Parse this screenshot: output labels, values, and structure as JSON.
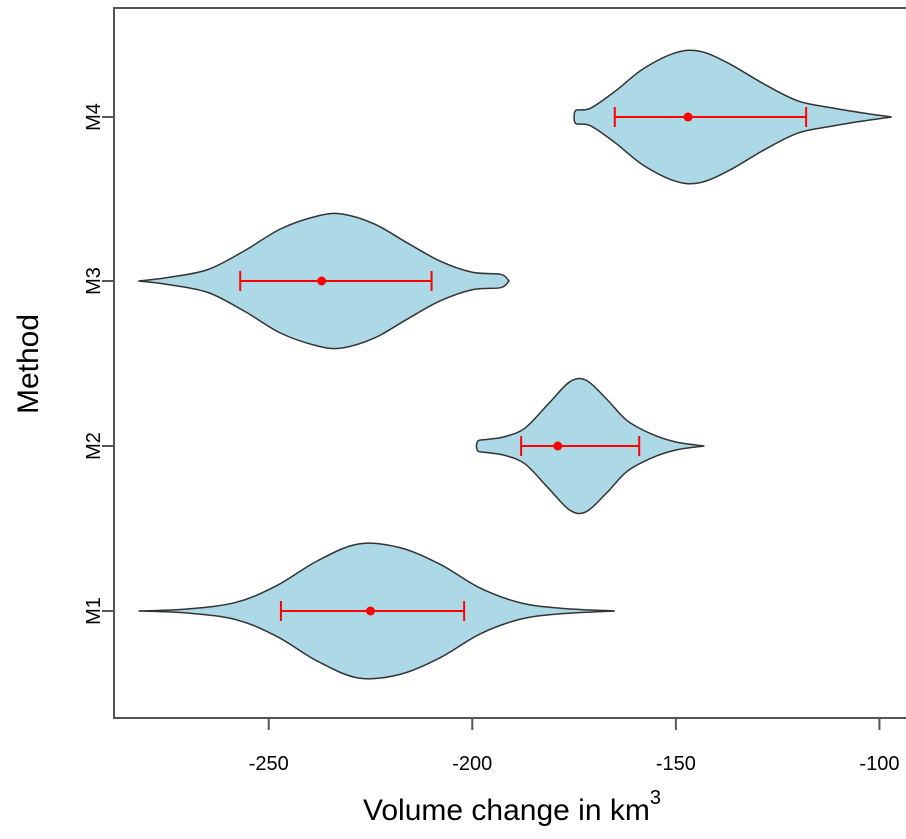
{
  "chart_data": {
    "type": "violin",
    "orientation": "horizontal",
    "xlabel": "Volume change in km",
    "xlabel_superscript": "3",
    "ylabel": "Method",
    "xlim": [
      -288,
      -92
    ],
    "x_ticks": [
      -250,
      -200,
      -150,
      -100
    ],
    "x_tick_labels": [
      "-250",
      "-200",
      "-150",
      "-100"
    ],
    "categories": [
      "M1",
      "M2",
      "M3",
      "M4"
    ],
    "series": [
      {
        "category": "M1",
        "min": -282,
        "max": -165,
        "mean": -225,
        "ci": [
          -247,
          -202
        ],
        "profile": [
          [
            -282,
            0
          ],
          [
            -270,
            0.03
          ],
          [
            -258,
            0.13
          ],
          [
            -248,
            0.38
          ],
          [
            -238,
            0.75
          ],
          [
            -228,
            1.0
          ],
          [
            -218,
            0.95
          ],
          [
            -208,
            0.7
          ],
          [
            -198,
            0.34
          ],
          [
            -188,
            0.12
          ],
          [
            -178,
            0.04
          ],
          [
            -165,
            0
          ]
        ]
      },
      {
        "category": "M2",
        "min": -199,
        "max": -143,
        "mean": -179,
        "ci": [
          -188,
          -159
        ],
        "profile": [
          [
            -199,
            0
          ],
          [
            -198.5,
            0.08
          ],
          [
            -196,
            0.1
          ],
          [
            -192,
            0.14
          ],
          [
            -187,
            0.27
          ],
          [
            -181,
            0.65
          ],
          [
            -176,
            0.96
          ],
          [
            -172,
            0.98
          ],
          [
            -167,
            0.7
          ],
          [
            -162,
            0.38
          ],
          [
            -156,
            0.18
          ],
          [
            -150,
            0.06
          ],
          [
            -143,
            0
          ]
        ]
      },
      {
        "category": "M3",
        "min": -282,
        "max": -191,
        "mean": -237,
        "ci": [
          -257,
          -210
        ],
        "profile": [
          [
            -282,
            0
          ],
          [
            -275,
            0.05
          ],
          [
            -265,
            0.17
          ],
          [
            -256,
            0.45
          ],
          [
            -247,
            0.78
          ],
          [
            -238,
            0.97
          ],
          [
            -232,
            1.0
          ],
          [
            -224,
            0.85
          ],
          [
            -216,
            0.57
          ],
          [
            -208,
            0.3
          ],
          [
            -200,
            0.13
          ],
          [
            -193,
            0.1
          ],
          [
            -191,
            0
          ]
        ]
      },
      {
        "category": "M4",
        "min": -175,
        "max": -97,
        "mean": -147,
        "ci": [
          -165,
          -118
        ],
        "profile": [
          [
            -175,
            0
          ],
          [
            -174.5,
            0.1
          ],
          [
            -171,
            0.13
          ],
          [
            -165,
            0.38
          ],
          [
            -158,
            0.72
          ],
          [
            -150,
            0.96
          ],
          [
            -144,
            0.98
          ],
          [
            -137,
            0.8
          ],
          [
            -128,
            0.48
          ],
          [
            -120,
            0.24
          ],
          [
            -112,
            0.14
          ],
          [
            -104,
            0.06
          ],
          [
            -97,
            0
          ]
        ]
      }
    ],
    "colors": {
      "violin_fill": "#add8e6",
      "violin_stroke": "#333333",
      "ci_marker": "#ff0000",
      "axis": "#555555"
    },
    "grid": false,
    "legend": "none"
  }
}
